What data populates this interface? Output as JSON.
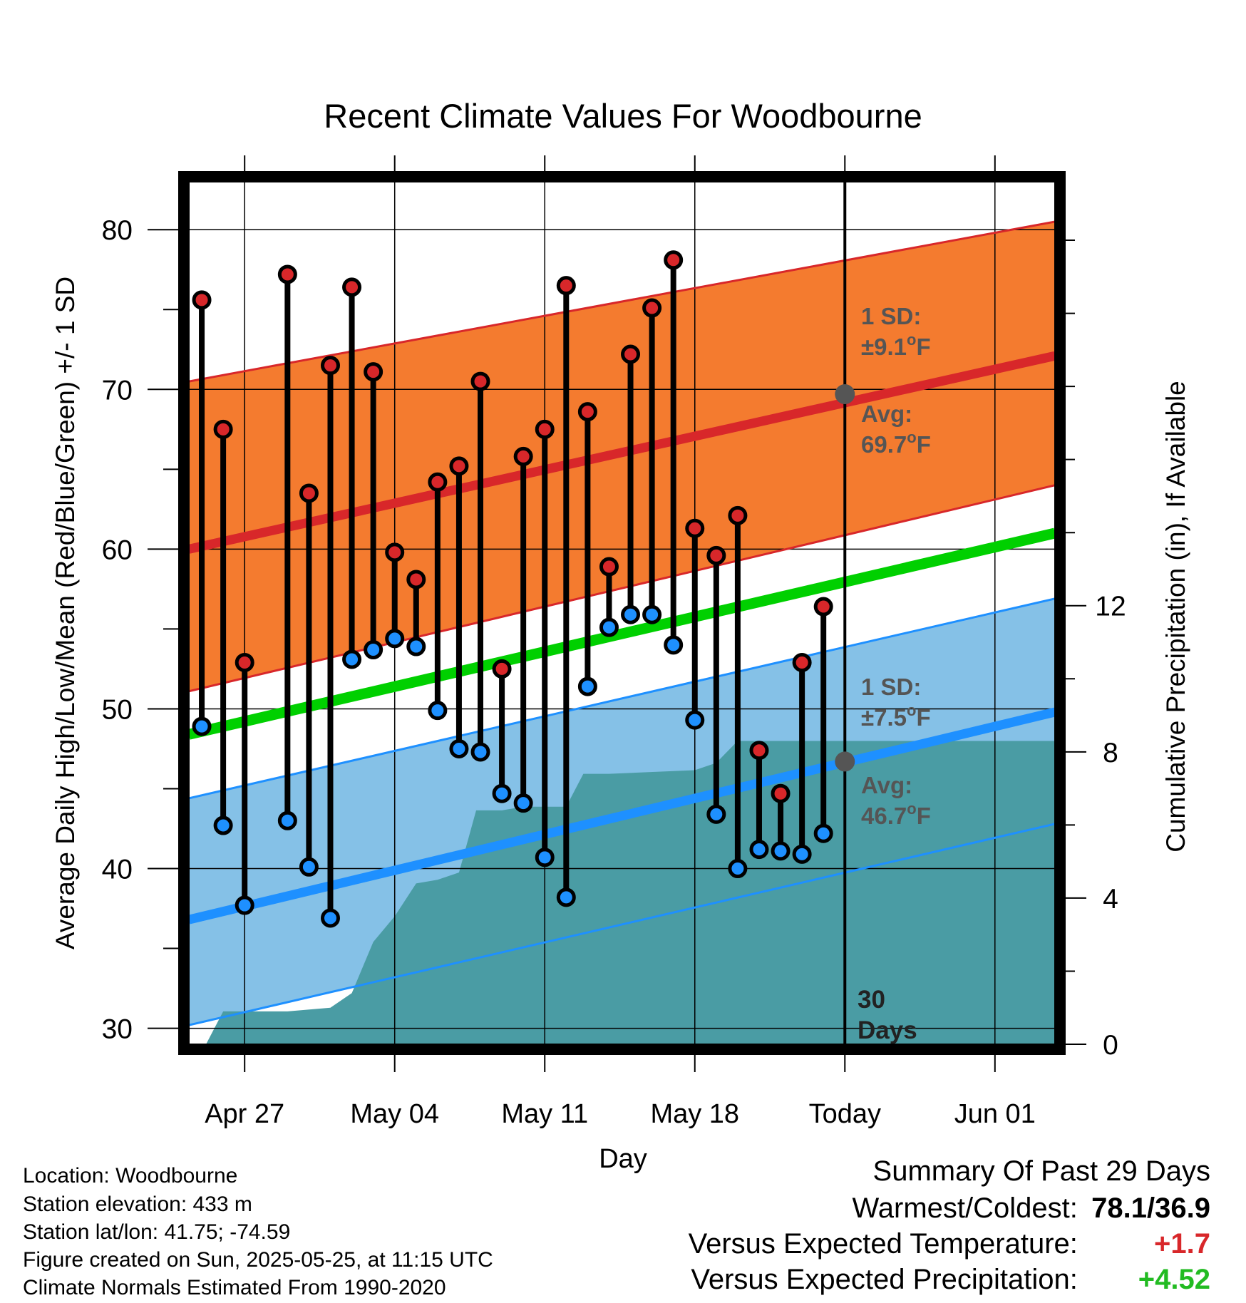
{
  "chart_data": {
    "type": "line",
    "title": "Recent Climate Values For Woodbourne",
    "xlabel": "Day",
    "ylabel_left": "Average Daily High/Low/Mean (Red/Blue/Green) +/- 1 SD",
    "ylabel_right": "Cumulative Precipitation (in), If Available",
    "ylim_left": [
      29,
      83
    ],
    "ylim_right": [
      0,
      23.6
    ],
    "yticks_left": [
      "30",
      "40",
      "50",
      "60",
      "70",
      "80"
    ],
    "yticks_right": [
      "0",
      "4",
      "8",
      "12"
    ],
    "x_tick_labels": [
      "Apr 27",
      "May 04",
      "May 11",
      "May 18",
      "Today",
      "Jun 01"
    ],
    "x_tick_days": [
      0,
      7,
      14,
      21,
      28,
      35
    ],
    "xlim_days": [
      -2.6,
      37.8
    ],
    "normals_days": [
      -2.6,
      37.8
    ],
    "normal_high": [
      60.0,
      72.1
    ],
    "normal_high_sd_upper": [
      70.5,
      80.5
    ],
    "normal_high_sd_lower": [
      51.1,
      64.0
    ],
    "normal_low": [
      36.8,
      49.8
    ],
    "normal_low_sd_upper": [
      44.4,
      56.9
    ],
    "normal_low_sd_lower": [
      30.2,
      42.8
    ],
    "normal_mean": [
      48.4,
      61.0
    ],
    "daily_start_day": -2,
    "daily_high": [
      75.6,
      67.5,
      52.9,
      null,
      77.2,
      63.5,
      71.5,
      76.4,
      71.1,
      59.8,
      58.1,
      64.2,
      65.2,
      70.5,
      52.5,
      65.8,
      67.5,
      76.5,
      68.6,
      58.9,
      72.2,
      75.1,
      78.1,
      61.3,
      59.6,
      62.1,
      47.4,
      44.7,
      52.9,
      56.4
    ],
    "daily_low": [
      48.9,
      42.7,
      37.7,
      null,
      43.0,
      40.1,
      36.9,
      53.1,
      53.7,
      54.4,
      53.9,
      49.9,
      47.5,
      47.3,
      44.7,
      44.1,
      40.7,
      38.2,
      51.4,
      55.1,
      55.9,
      55.9,
      54.0,
      49.3,
      43.4,
      40.0,
      41.2,
      41.1,
      40.9,
      42.2
    ],
    "precip_days": [
      -2.6,
      -1.8,
      -1.0,
      2.0,
      4.0,
      5.0,
      6.0,
      7.0,
      8.0,
      9.0,
      10.0,
      10.8,
      12.0,
      13.0,
      14.0,
      15.0,
      15.8,
      17.0,
      21.0,
      22.0,
      23.0,
      24.0,
      37.8
    ],
    "precip_cumulative": [
      0.0,
      0.0,
      0.9,
      0.9,
      1.0,
      1.4,
      2.8,
      3.5,
      4.4,
      4.5,
      4.7,
      6.4,
      6.4,
      6.5,
      6.5,
      6.5,
      7.4,
      7.4,
      7.5,
      7.7,
      8.3,
      8.3,
      8.3
    ],
    "annotations": {
      "high_sd_label": "1 SD:",
      "high_sd_value": "±9.1",
      "high_avg_label": "Avg:",
      "high_avg_value": "69.7",
      "low_sd_label": "1 SD:",
      "low_sd_value": "±7.5",
      "low_avg_label": "Avg:",
      "low_avg_value": "46.7",
      "degree_unit_o": "o",
      "degree_unit_f": "F",
      "window_count": "30",
      "window_unit": "Days"
    },
    "today_avg_high": 69.7,
    "today_avg_low": 46.7,
    "grid": true,
    "colors": {
      "high_band": "#f47b2f",
      "high_line": "#d8272a",
      "low_band": "#85c1e7",
      "low_line": "#1e90ff",
      "mean_line": "#00d000",
      "precip": "#4a9ca4",
      "high_dot": "#d8272a",
      "low_dot": "#1e90ff",
      "today_dot": "#555555"
    }
  },
  "station_info": {
    "location": "Location: Woodbourne",
    "elevation": "Station elevation: 433 m",
    "latlon": "Station lat/lon: 41.75; -74.59",
    "created": "Figure created on Sun, 2025-05-25, at 11:15 UTC",
    "normals": "Climate Normals Estimated From 1990-2020"
  },
  "summary": {
    "title": "Summary Of Past 29 Days",
    "warmest_coldest_label": "Warmest/Coldest:",
    "warmest_coldest_value": "78.1/36.9",
    "temp_label": "Versus Expected Temperature:",
    "temp_value": "+1.7",
    "temp_color": "#d8272a",
    "precip_label": "Versus Expected Precipitation:",
    "precip_value": "+4.52",
    "precip_color": "#22bb22"
  }
}
